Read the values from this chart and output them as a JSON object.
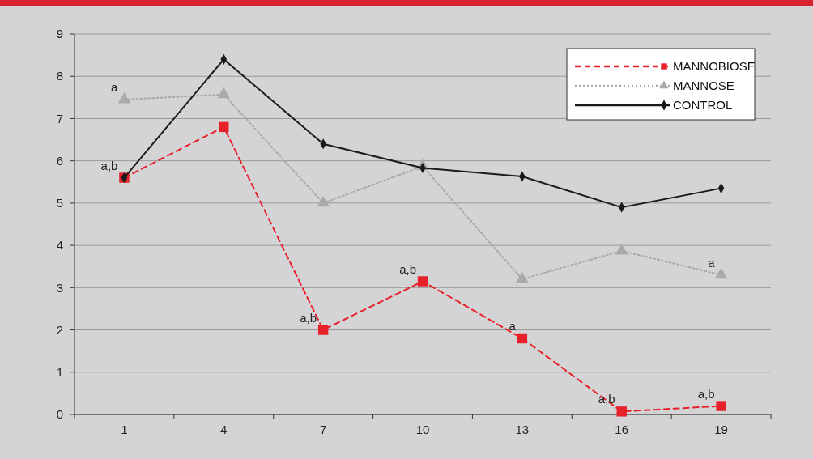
{
  "chart_data": {
    "type": "line",
    "categories": [
      "1",
      "4",
      "7",
      "10",
      "13",
      "16",
      "19"
    ],
    "series": [
      {
        "name": "MANNOBIOSE",
        "color": "#e8202a",
        "values": [
          5.6,
          6.8,
          2.0,
          3.15,
          1.8,
          0.07,
          0.2
        ],
        "line_style": "dashed",
        "marker": "square"
      },
      {
        "name": "MANNOSE",
        "color": "#aaaaaa",
        "values": [
          7.45,
          7.57,
          5.0,
          5.87,
          3.2,
          3.87,
          3.3
        ],
        "line_style": "dotted",
        "marker": "triangle"
      },
      {
        "name": "CONTROL",
        "color": "#1a1a1a",
        "values": [
          5.6,
          8.4,
          6.4,
          5.83,
          5.63,
          4.9,
          5.35
        ],
        "line_style": "solid",
        "marker": "diamond"
      }
    ],
    "ylim": [
      0,
      9
    ],
    "yticks": [
      0,
      1,
      2,
      3,
      4,
      5,
      6,
      7,
      8,
      9
    ],
    "grid": "y",
    "legend": "top right",
    "annotations": [
      {
        "text": "a",
        "x": "1",
        "y": 7.45
      },
      {
        "text": "a,b",
        "x": "1",
        "y": 5.6
      },
      {
        "text": "a,b",
        "x": "7",
        "y": 2.0
      },
      {
        "text": "a,b",
        "x": "10",
        "y": 3.15
      },
      {
        "text": "a",
        "x": "13",
        "y": 1.8
      },
      {
        "text": "a,b",
        "x": "16",
        "y": 0.07
      },
      {
        "text": "a,b",
        "x": "19",
        "y": 0.2
      },
      {
        "text": "a",
        "x": "19",
        "y": 3.3
      }
    ]
  }
}
